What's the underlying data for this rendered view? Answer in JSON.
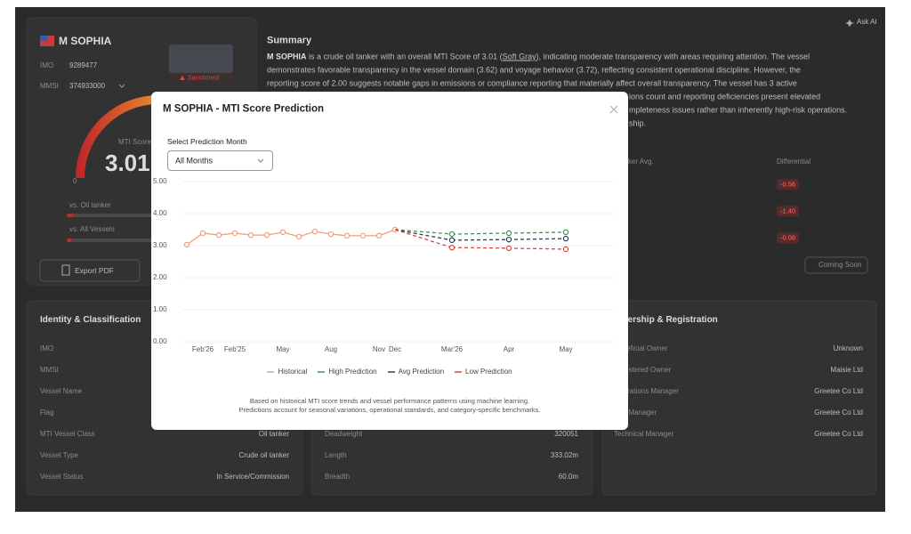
{
  "app": {
    "ask_ai": "Ask AI",
    "vessel": {
      "name": "M SOPHIA",
      "imo_label": "IMO",
      "imo": "9289477",
      "mmsi_label": "MMSI",
      "mmsi": "374933000",
      "status_badge": "Sanctioned",
      "score_label": "MTI Score",
      "score": "3.01",
      "gauge_min": "0",
      "comparisons": [
        "vs. Oil tanker",
        "vs. All Vessels"
      ],
      "export_button": "Export PDF"
    },
    "summary": {
      "title": "Summary",
      "first_line": [
        "M SOPHIA",
        " is a crude oil tanker with an overall MTI Score of 3.01 (",
        "Soft Gray",
        "), indicating moderate transparency with areas requiring attention. The vessel"
      ],
      "lines": [
        "demonstrates favorable transparency in the vessel domain (3.62) and voyage behavior (3.72), reflecting consistent operational discipline. However, the",
        "reporting score of 2.00 suggests notable gaps in emissions or compliance reporting that materially affect overall transparency. The vessel has 3 active"
      ],
      "visible_fragments": [
        "ions count and reporting deficiencies present elevated",
        "mpleteness issues rather than inherently high-risk operations.",
        "ship."
      ]
    },
    "benchmark": {
      "headers": [
        "Tanker Avg.",
        "Differential"
      ],
      "differentials": [
        "-0.56",
        "-1.40",
        "-0.08"
      ],
      "action": "Coming Soon"
    },
    "identity": {
      "title": "Identity & Classification",
      "rows": [
        {
          "label": "IMO"
        },
        {
          "label": "MMSI"
        },
        {
          "label": "Vessel Name"
        },
        {
          "label": "Flag"
        },
        {
          "label": "MTI Vessel Class",
          "value": "Oil tanker"
        },
        {
          "label": "Vessel Type",
          "value": "Crude oil tanker"
        },
        {
          "label": "Vessel Status",
          "value": "In Service/Commission"
        }
      ]
    },
    "dimensions": {
      "rows": [
        {
          "label": "Deadweight",
          "value": "320051"
        },
        {
          "label": "Length",
          "value": "333.02m"
        },
        {
          "label": "Breadth",
          "value": "60.0m"
        }
      ]
    },
    "ownership": {
      "title": "Ownership & Registration",
      "rows": [
        {
          "label": "Beneficial Owner",
          "value": "Unknown"
        },
        {
          "label": "Registered Owner",
          "value": "Maisie Ltd"
        },
        {
          "label": "Operations Manager",
          "value": "Greetee Co Ltd"
        },
        {
          "label": "ISM Manager",
          "value": "Greetee Co Ltd"
        },
        {
          "label": "Technical Manager",
          "value": "Greetee Co Ltd"
        }
      ]
    }
  },
  "modal": {
    "title": "M SOPHIA - MTI Score Prediction",
    "select_label": "Select Prediction Month",
    "select_value": "All Months",
    "footnote": [
      "Based on historical MTI score trends and vessel performance patterns using machine learning.",
      "Predictions account for seasonal variations, operational standards, and category-specific benchmarks."
    ]
  },
  "chart_data": {
    "type": "line",
    "categories": [
      null,
      "Feb'26",
      null,
      "Feb'25",
      null,
      null,
      "May",
      null,
      null,
      "Aug",
      null,
      null,
      "Nov",
      "Dec",
      "Mar'26",
      "Apr",
      "May"
    ],
    "series": [
      {
        "name": "Historical",
        "color": "#f0a07a",
        "line_style": "solid",
        "values": [
          3.03,
          3.39,
          3.33,
          3.39,
          3.33,
          3.33,
          3.42,
          3.28,
          3.44,
          3.36,
          3.31,
          3.31,
          3.31,
          3.5,
          null,
          null,
          null
        ]
      },
      {
        "name": "High Prediction",
        "color": "#3f8f5a",
        "line_style": "dashed",
        "values": [
          null,
          null,
          null,
          null,
          null,
          null,
          null,
          null,
          null,
          null,
          null,
          null,
          null,
          null,
          3.36,
          3.39,
          3.42
        ]
      },
      {
        "name": "Avg Prediction",
        "color": "#2e3b55",
        "line_style": "dashed",
        "values": [
          null,
          null,
          null,
          null,
          null,
          null,
          null,
          null,
          null,
          null,
          null,
          null,
          null,
          null,
          3.17,
          3.19,
          3.22
        ]
      },
      {
        "name": "Low Prediction",
        "color": "#d9473d",
        "line_style": "dashed",
        "values": [
          null,
          null,
          null,
          null,
          null,
          null,
          null,
          null,
          null,
          null,
          null,
          null,
          null,
          null,
          2.94,
          2.92,
          2.89
        ]
      }
    ],
    "ylim": [
      0,
      5
    ],
    "yticks": [
      {
        "value": 0,
        "label": "0.00"
      },
      {
        "value": 1,
        "label": "1.00"
      },
      {
        "value": 2,
        "label": "2.00"
      },
      {
        "value": 3,
        "label": "3.00"
      },
      {
        "value": 4,
        "label": "4.00"
      },
      {
        "value": 5,
        "label": "5.00"
      }
    ],
    "grid": true,
    "legend": "bottom"
  }
}
